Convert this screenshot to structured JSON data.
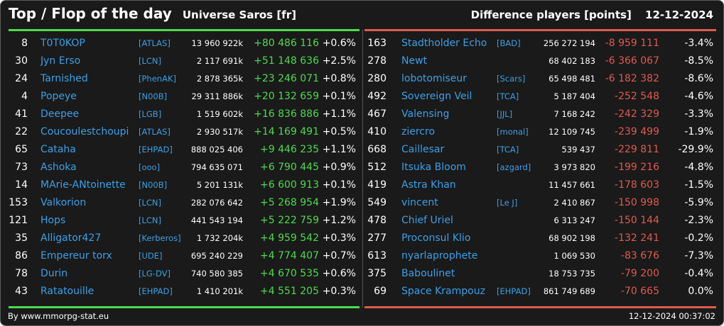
{
  "header": {
    "title": "Top / Flop of the day",
    "universe": "Universe Saros [fr]",
    "subtitle": "Difference players [points]",
    "date": "12-12-2024"
  },
  "colors": {
    "background": "#1a1a1a",
    "positive": "#4ddb4d",
    "negative": "#e05a4f",
    "link": "#3aa0e8",
    "text": "#ffffff"
  },
  "top": [
    {
      "rank": "8",
      "name": "T0T0KOP",
      "alliance": "[ATLAS]",
      "points": "13 960 922k",
      "diff": "+80 486 116",
      "pct": "+0.6%"
    },
    {
      "rank": "30",
      "name": "Jyn Erso",
      "alliance": "[LCN]",
      "points": "2 117 691k",
      "diff": "+51 148 636",
      "pct": "+2.5%"
    },
    {
      "rank": "24",
      "name": "Tarnished",
      "alliance": "[PhenAK]",
      "points": "2 878 365k",
      "diff": "+23 246 071",
      "pct": "+0.8%"
    },
    {
      "rank": "4",
      "name": "Popeye",
      "alliance": "[N00B]",
      "points": "29 311 886k",
      "diff": "+20 132 659",
      "pct": "+0.1%"
    },
    {
      "rank": "41",
      "name": "Deepee",
      "alliance": "[LGB]",
      "points": "1 519 602k",
      "diff": "+16 836 886",
      "pct": "+1.1%"
    },
    {
      "rank": "22",
      "name": "Coucoulestchoupi",
      "alliance": "[ATLAS]",
      "points": "2 930 517k",
      "diff": "+14 169 491",
      "pct": "+0.5%"
    },
    {
      "rank": "65",
      "name": "Cataha",
      "alliance": "[EHPAD]",
      "points": "888 025 406",
      "diff": "+9 446 235",
      "pct": "+1.1%"
    },
    {
      "rank": "73",
      "name": "Ashoka",
      "alliance": "[ooo]",
      "points": "794 635 071",
      "diff": "+6 790 445",
      "pct": "+0.9%"
    },
    {
      "rank": "14",
      "name": "MArie-ANtoinette",
      "alliance": "[N00B]",
      "points": "5 201 131k",
      "diff": "+6 600 913",
      "pct": "+0.1%"
    },
    {
      "rank": "153",
      "name": "Valkorion",
      "alliance": "[LCN]",
      "points": "282 076 642",
      "diff": "+5 268 954",
      "pct": "+1.9%"
    },
    {
      "rank": "121",
      "name": "Hops",
      "alliance": "[LCN]",
      "points": "441 543 194",
      "diff": "+5 222 759",
      "pct": "+1.2%"
    },
    {
      "rank": "35",
      "name": "Alligator427",
      "alliance": "[Kerberos]",
      "points": "1 732 204k",
      "diff": "+4 959 542",
      "pct": "+0.3%"
    },
    {
      "rank": "86",
      "name": "Empereur torx",
      "alliance": "[UDE]",
      "points": "695 240 229",
      "diff": "+4 774 407",
      "pct": "+0.7%"
    },
    {
      "rank": "78",
      "name": "Durin",
      "alliance": "[LG-DV]",
      "points": "740 580 385",
      "diff": "+4 670 535",
      "pct": "+0.6%"
    },
    {
      "rank": "43",
      "name": "Ratatouille",
      "alliance": "[EHPAD]",
      "points": "1 410 201k",
      "diff": "+4 551 205",
      "pct": "+0.3%"
    }
  ],
  "flop": [
    {
      "rank": "163",
      "name": "Stadtholder Echo",
      "alliance": "[BAD]",
      "points": "256 272 194",
      "diff": "-8 959 111",
      "pct": "-3.4%"
    },
    {
      "rank": "278",
      "name": "Newt",
      "alliance": "",
      "points": "68 402 183",
      "diff": "-6 366 067",
      "pct": "-8.5%"
    },
    {
      "rank": "280",
      "name": "lobotomiseur",
      "alliance": "[Scars]",
      "points": "65 498 481",
      "diff": "-6 182 382",
      "pct": "-8.6%"
    },
    {
      "rank": "492",
      "name": "Sovereign Veil",
      "alliance": "[TCA]",
      "points": "5 187 404",
      "diff": "-252 548",
      "pct": "-4.6%"
    },
    {
      "rank": "467",
      "name": "Valensing",
      "alliance": "[JJL]",
      "points": "7 168 242",
      "diff": "-242 329",
      "pct": "-3.3%"
    },
    {
      "rank": "410",
      "name": "ziercro",
      "alliance": "[monal]",
      "points": "12 109 745",
      "diff": "-239 499",
      "pct": "-1.9%"
    },
    {
      "rank": "668",
      "name": "Caillesar",
      "alliance": "[TCA]",
      "points": "539 437",
      "diff": "-229 811",
      "pct": "-29.9%"
    },
    {
      "rank": "512",
      "name": "Itsuka Bloom",
      "alliance": "[azgard]",
      "points": "3 973 820",
      "diff": "-199 216",
      "pct": "-4.8%"
    },
    {
      "rank": "419",
      "name": "Astra Khan",
      "alliance": "",
      "points": "11 457 661",
      "diff": "-178 603",
      "pct": "-1.5%"
    },
    {
      "rank": "549",
      "name": "vincent",
      "alliance": "[Le J]",
      "points": "2 410 867",
      "diff": "-150 998",
      "pct": "-5.9%"
    },
    {
      "rank": "478",
      "name": "Chief Uriel",
      "alliance": "",
      "points": "6 313 247",
      "diff": "-150 144",
      "pct": "-2.3%"
    },
    {
      "rank": "277",
      "name": "Proconsul Klio",
      "alliance": "",
      "points": "68 902 198",
      "diff": "-132 241",
      "pct": "-0.2%"
    },
    {
      "rank": "613",
      "name": "nyarlaprophete",
      "alliance": "",
      "points": "1 069 530",
      "diff": "-83 676",
      "pct": "-7.3%"
    },
    {
      "rank": "375",
      "name": "Baboulinet",
      "alliance": "",
      "points": "18 753 735",
      "diff": "-79 200",
      "pct": "-0.4%"
    },
    {
      "rank": "69",
      "name": "Space Krampouz",
      "alliance": "[EHPAD]",
      "points": "861 749 689",
      "diff": "-70 665",
      "pct": "0.0%"
    }
  ],
  "footer": {
    "credit": "By www.mmorpg-stat.eu",
    "timestamp": "12-12-2024 00:37:02"
  }
}
